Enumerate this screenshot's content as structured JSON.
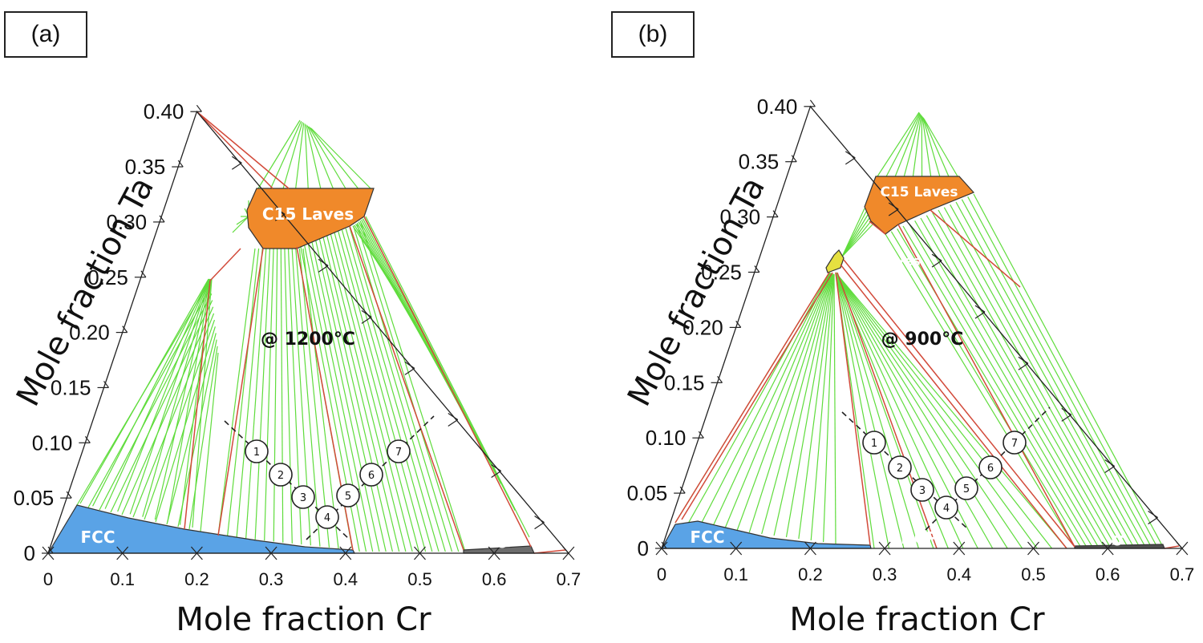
{
  "panels": [
    {
      "label": "(a)",
      "temperature": "@ 1200°C",
      "y_axis_title": "Mole fraction Ta",
      "x_axis_title": "Mole fraction Cr",
      "x_ticks": [
        "0",
        "0.1",
        "0.2",
        "0.3",
        "0.4",
        "0.5",
        "0.6",
        "0.7"
      ],
      "y_ticks": [
        "0",
        "0.05",
        "0.10",
        "0.15",
        "0.20",
        "0.25",
        "0.30",
        "0.35",
        "0.40"
      ],
      "phases": {
        "fcc": "FCC",
        "c15": "C15 Laves",
        "sigma": "σ"
      },
      "markers": [
        "1",
        "2",
        "3",
        "4",
        "5",
        "6",
        "7"
      ],
      "colors": {
        "fcc": "#5aa3e6",
        "c15": "#f0892a",
        "sigma": "#6d6d6d",
        "tie_line": "#5fdc3c",
        "boundary": "#d24a3a"
      }
    },
    {
      "label": "(b)",
      "temperature": "@ 900°C",
      "y_axis_title": "Mole fraction Ta",
      "x_axis_title": "Mole fraction Cr",
      "x_ticks": [
        "0",
        "0.1",
        "0.2",
        "0.3",
        "0.4",
        "0.5",
        "0.6",
        "0.7"
      ],
      "y_ticks": [
        "0",
        "0.05",
        "0.10",
        "0.15",
        "0.20",
        "0.25",
        "0.30",
        "0.35",
        "0.40"
      ],
      "phases": {
        "fcc": "FCC",
        "hcp": "HCP",
        "c15": "C15 Laves",
        "c36": "C36 Laves",
        "sigma": "σ"
      },
      "markers": [
        "1",
        "2",
        "3",
        "4",
        "5",
        "6",
        "7"
      ],
      "colors": {
        "fcc": "#5aa3e6",
        "hcp": "#3cbf3c",
        "c15": "#f0892a",
        "c36": "#e6e040",
        "sigma": "#505050",
        "tie_line": "#5fdc3c",
        "boundary": "#d24a3a"
      }
    }
  ]
}
